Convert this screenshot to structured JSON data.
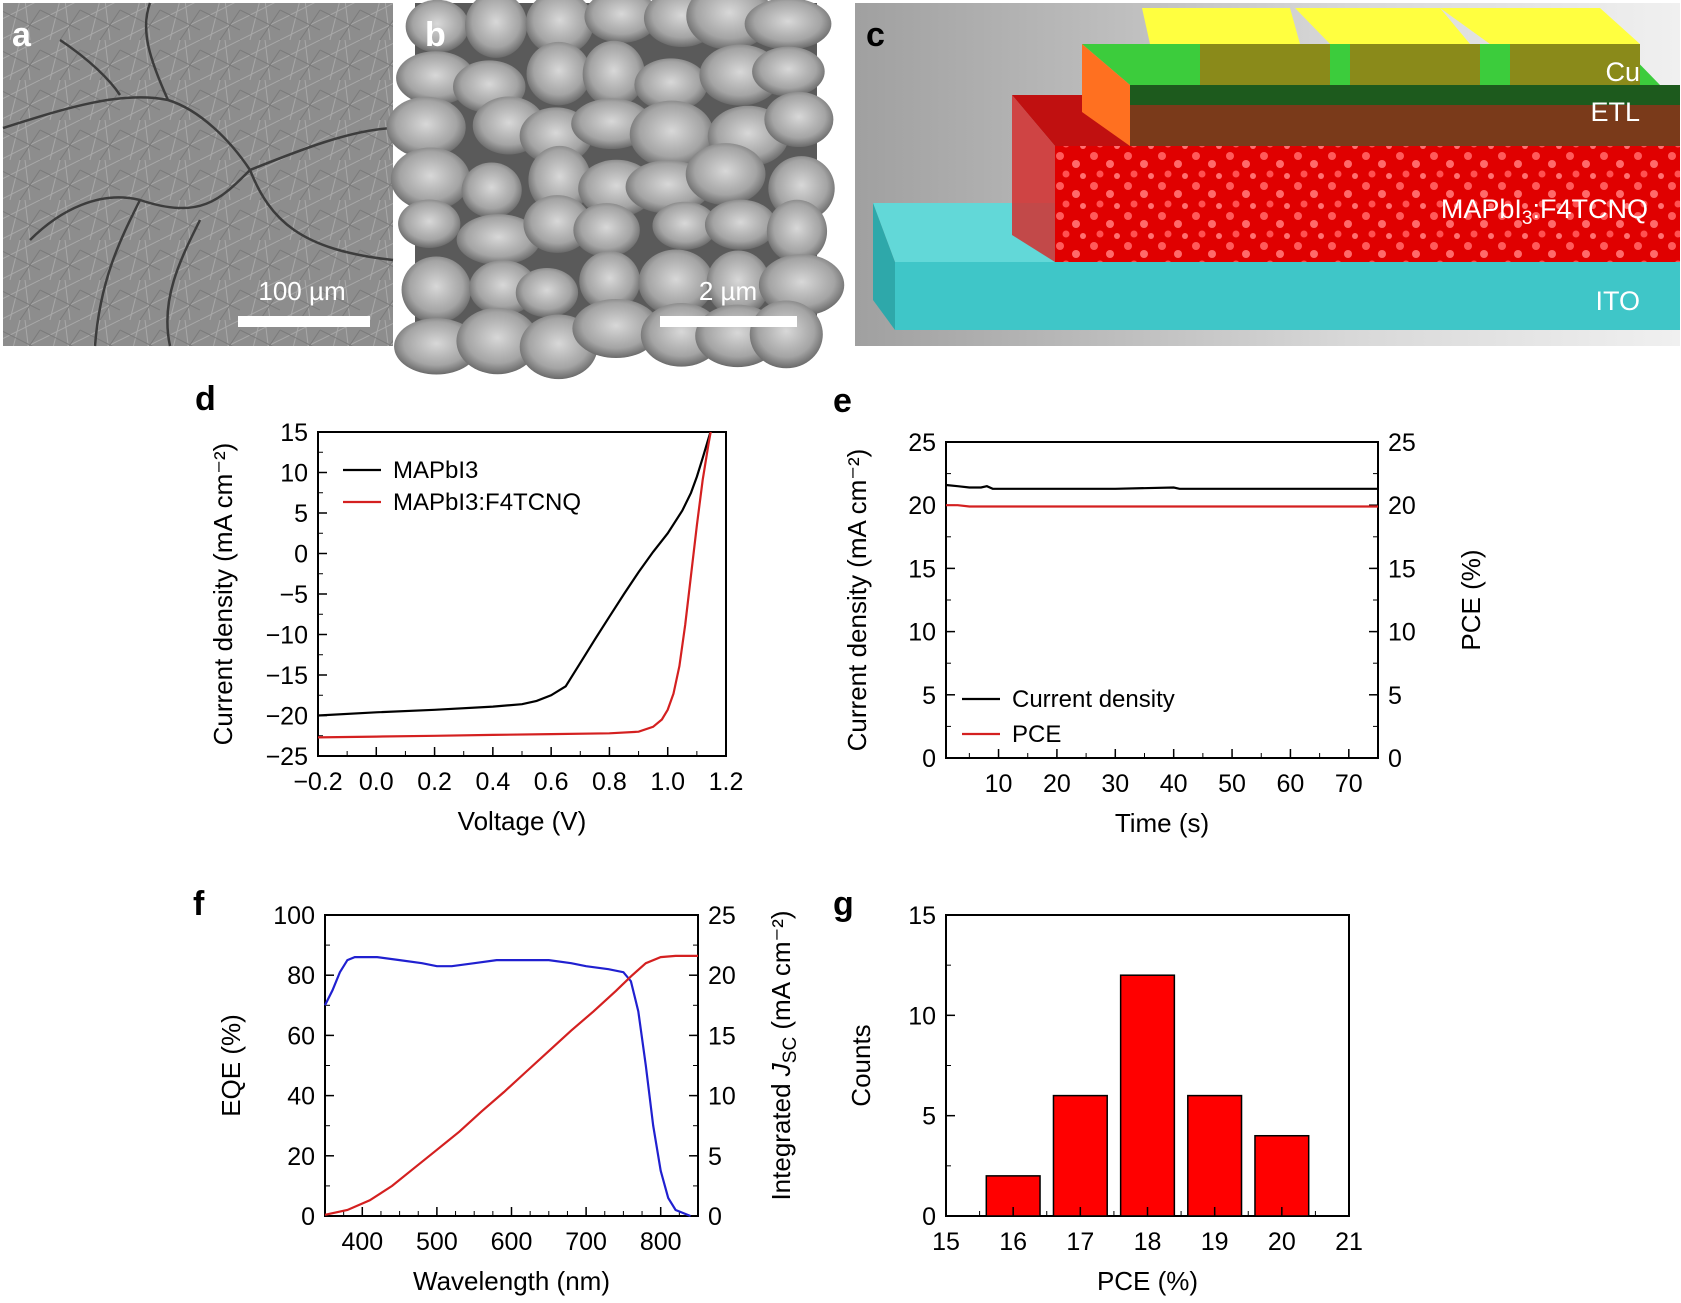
{
  "panels": {
    "a": {
      "letter": "a",
      "scale_label": "100 µm"
    },
    "b": {
      "letter": "b",
      "scale_label": "2 µm"
    },
    "c": {
      "letter": "c",
      "layers": [
        "Cu",
        "ETL",
        "MAPbI3:F4TCNQ",
        "ITO"
      ]
    },
    "d": {
      "letter": "d"
    },
    "e": {
      "letter": "e"
    },
    "f": {
      "letter": "f"
    },
    "g": {
      "letter": "g"
    }
  },
  "colors": {
    "black_series": "#000000",
    "red_series": "#d42020",
    "blue_series": "#2020d0",
    "bar_fill": "#ff0000"
  },
  "chart_data": [
    {
      "id": "d",
      "type": "line",
      "xlabel": "Voltage (V)",
      "ylabel": "Current density (mA cm⁻²)",
      "xlim": [
        -0.2,
        1.2
      ],
      "ylim": [
        -25,
        15
      ],
      "xticks": [
        "−0.2",
        "0.0",
        "0.2",
        "0.4",
        "0.6",
        "0.8",
        "1.0",
        "1.2"
      ],
      "yticks": [
        "15",
        "10",
        "5",
        "0",
        "−5",
        "−10",
        "−15",
        "−20",
        "−25"
      ],
      "legend_position": "top-left",
      "series": [
        {
          "name": "MAPbI3",
          "color": "#000000",
          "x": [
            -0.2,
            0.0,
            0.2,
            0.4,
            0.5,
            0.55,
            0.6,
            0.65,
            0.7,
            0.75,
            0.8,
            0.85,
            0.9,
            0.95,
            1.0,
            1.05,
            1.08,
            1.1,
            1.12,
            1.14,
            1.16
          ],
          "y": [
            -20.0,
            -19.6,
            -19.3,
            -18.9,
            -18.6,
            -18.2,
            -17.5,
            -16.4,
            -13.5,
            -10.6,
            -7.8,
            -5.0,
            -2.3,
            0.2,
            2.5,
            5.3,
            7.5,
            9.5,
            11.8,
            14.2,
            16.5
          ]
        },
        {
          "name": "MAPbI3:F4TCNQ",
          "color": "#d42020",
          "x": [
            -0.2,
            0.0,
            0.2,
            0.4,
            0.6,
            0.8,
            0.9,
            0.95,
            0.98,
            1.0,
            1.02,
            1.04,
            1.06,
            1.08,
            1.1,
            1.12,
            1.14,
            1.15,
            1.16
          ],
          "y": [
            -22.7,
            -22.6,
            -22.5,
            -22.4,
            -22.3,
            -22.2,
            -22.0,
            -21.4,
            -20.5,
            -19.3,
            -17.3,
            -13.9,
            -8.8,
            -2.7,
            3.5,
            9.1,
            13.5,
            15.5,
            17.0
          ]
        }
      ]
    },
    {
      "id": "e",
      "type": "line",
      "xlabel": "Time (s)",
      "ylabel": "Current density (mA cm⁻²)",
      "y2label": "PCE (%)",
      "xlim": [
        1,
        75
      ],
      "ylim": [
        0,
        25
      ],
      "y2lim": [
        0,
        25
      ],
      "xticks": [
        "10",
        "20",
        "30",
        "40",
        "50",
        "60",
        "70"
      ],
      "yticks": [
        "25",
        "20",
        "15",
        "10",
        "5",
        "0"
      ],
      "y2ticks": [
        "25",
        "20",
        "15",
        "10",
        "5",
        "0"
      ],
      "legend_position": "bottom-left",
      "series": [
        {
          "name": "Current density",
          "color": "#000000",
          "x": [
            1,
            3,
            5,
            7,
            8,
            9,
            10,
            20,
            30,
            40,
            41,
            50,
            60,
            70,
            75
          ],
          "y": [
            21.6,
            21.5,
            21.4,
            21.4,
            21.5,
            21.3,
            21.3,
            21.3,
            21.3,
            21.4,
            21.3,
            21.3,
            21.3,
            21.3,
            21.3
          ]
        },
        {
          "name": "PCE",
          "color": "#d42020",
          "x": [
            1,
            3,
            5,
            8,
            10,
            20,
            30,
            40,
            50,
            60,
            70,
            75
          ],
          "y": [
            20.0,
            20.0,
            19.9,
            19.9,
            19.9,
            19.9,
            19.9,
            19.9,
            19.9,
            19.9,
            19.9,
            19.9
          ]
        }
      ]
    },
    {
      "id": "f",
      "type": "line",
      "xlabel": "Wavelength (nm)",
      "ylabel": "EQE (%)",
      "y2label_prefix": "Integrated ",
      "y2label_italic": "J",
      "y2label_sub": "SC",
      "y2label_suffix": " (mA cm⁻²)",
      "xlim": [
        350,
        850
      ],
      "ylim": [
        0,
        100
      ],
      "y2lim": [
        0,
        25
      ],
      "xticks": [
        "400",
        "500",
        "600",
        "700",
        "800"
      ],
      "yticks": [
        "100",
        "80",
        "60",
        "40",
        "20",
        "0"
      ],
      "y2ticks": [
        "25",
        "20",
        "15",
        "10",
        "5",
        "0"
      ],
      "series": [
        {
          "name": "EQE",
          "axis": "left",
          "color": "#2020d0",
          "x": [
            350,
            360,
            370,
            380,
            390,
            400,
            420,
            450,
            480,
            500,
            520,
            550,
            580,
            600,
            620,
            650,
            680,
            700,
            730,
            750,
            760,
            770,
            780,
            790,
            800,
            810,
            820,
            830,
            840
          ],
          "y": [
            70,
            75,
            81,
            85,
            86,
            86,
            86,
            85,
            84,
            83,
            83,
            84,
            85,
            85,
            85,
            85,
            84,
            83,
            82,
            81,
            78,
            68,
            50,
            30,
            15,
            6,
            2,
            1,
            0
          ]
        },
        {
          "name": "Integrated JSC",
          "axis": "right",
          "color": "#d42020",
          "x": [
            350,
            380,
            410,
            440,
            470,
            500,
            530,
            560,
            590,
            620,
            650,
            680,
            710,
            740,
            760,
            780,
            800,
            820,
            850
          ],
          "y": [
            0.1,
            0.5,
            1.3,
            2.5,
            4.0,
            5.5,
            7.0,
            8.7,
            10.3,
            12.0,
            13.7,
            15.4,
            17.0,
            18.7,
            19.9,
            21.0,
            21.5,
            21.6,
            21.6
          ]
        }
      ]
    },
    {
      "id": "g",
      "type": "bar",
      "xlabel": "PCE (%)",
      "ylabel": "Counts",
      "xlim": [
        15,
        21
      ],
      "ylim": [
        0,
        15
      ],
      "xticks": [
        "15",
        "16",
        "17",
        "18",
        "19",
        "20",
        "21"
      ],
      "yticks": [
        "15",
        "10",
        "5",
        "0"
      ],
      "bin_width": 0.8,
      "x": [
        16,
        17,
        18,
        19,
        20
      ],
      "values": [
        2,
        6,
        12,
        6,
        4
      ]
    }
  ]
}
